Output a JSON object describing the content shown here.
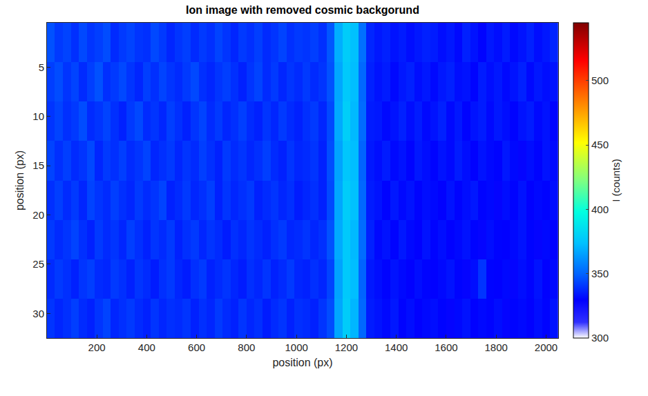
{
  "chart_data": {
    "type": "heatmap",
    "title": "Ion image with removed cosmic backgorund",
    "xlabel": "position (px)",
    "ylabel": "position (px)",
    "colorbar_title": "I (counts)",
    "x": [
      16,
      48,
      80,
      112,
      144,
      176,
      208,
      240,
      272,
      304,
      336,
      368,
      400,
      432,
      464,
      496,
      528,
      560,
      592,
      624,
      656,
      688,
      720,
      752,
      784,
      816,
      848,
      880,
      912,
      944,
      976,
      1008,
      1040,
      1072,
      1104,
      1136,
      1168,
      1200,
      1232,
      1264,
      1296,
      1328,
      1360,
      1392,
      1424,
      1456,
      1488,
      1520,
      1552,
      1584,
      1616,
      1648,
      1680,
      1712,
      1744,
      1776,
      1808,
      1840,
      1872,
      1904,
      1936,
      1968,
      2000,
      2032
    ],
    "y": [
      2.5,
      6.5,
      10.5,
      14.5,
      18.5,
      22.5,
      26.5,
      30.5
    ],
    "z": [
      [
        346,
        341,
        343,
        339,
        344,
        340,
        342,
        345,
        338,
        341,
        343,
        340,
        339,
        344,
        341,
        337,
        340,
        342,
        338,
        341,
        339,
        343,
        340,
        337,
        341,
        339,
        342,
        338,
        340,
        343,
        339,
        341,
        340,
        342,
        339,
        347,
        369,
        378,
        374,
        353,
        337,
        334,
        336,
        333,
        335,
        332,
        334,
        336,
        335,
        332,
        334,
        331,
        336,
        333,
        330,
        334,
        332,
        335,
        331,
        333,
        336,
        332,
        334,
        337
      ],
      [
        342,
        345,
        340,
        343,
        338,
        342,
        346,
        339,
        341,
        344,
        340,
        337,
        342,
        339,
        343,
        340,
        338,
        341,
        344,
        339,
        337,
        340,
        342,
        339,
        336,
        340,
        343,
        338,
        341,
        337,
        340,
        338,
        341,
        338,
        340,
        346,
        367,
        377,
        373,
        351,
        336,
        333,
        335,
        331,
        334,
        336,
        332,
        334,
        331,
        334,
        336,
        332,
        333,
        330,
        335,
        332,
        334,
        331,
        333,
        336,
        331,
        334,
        332,
        333
      ],
      [
        340,
        343,
        339,
        341,
        345,
        338,
        340,
        343,
        339,
        336,
        341,
        344,
        338,
        340,
        337,
        342,
        339,
        336,
        340,
        343,
        338,
        341,
        337,
        339,
        342,
        338,
        336,
        340,
        337,
        341,
        338,
        336,
        339,
        341,
        337,
        344,
        368,
        379,
        372,
        352,
        335,
        334,
        331,
        333,
        336,
        332,
        335,
        331,
        333,
        336,
        331,
        334,
        330,
        333,
        335,
        331,
        334,
        332,
        330,
        333,
        335,
        331,
        333,
        330
      ],
      [
        343,
        339,
        342,
        338,
        340,
        344,
        337,
        341,
        339,
        342,
        338,
        340,
        343,
        337,
        339,
        341,
        337,
        340,
        338,
        342,
        339,
        336,
        341,
        338,
        340,
        337,
        339,
        342,
        338,
        336,
        340,
        337,
        338,
        340,
        336,
        345,
        366,
        376,
        373,
        350,
        334,
        332,
        335,
        331,
        333,
        330,
        334,
        332,
        330,
        333,
        331,
        335,
        332,
        329,
        333,
        331,
        330,
        334,
        331,
        328,
        332,
        330,
        333,
        331
      ],
      [
        339,
        342,
        338,
        341,
        337,
        343,
        340,
        338,
        342,
        339,
        337,
        341,
        338,
        340,
        343,
        336,
        338,
        341,
        337,
        339,
        342,
        336,
        340,
        337,
        339,
        341,
        336,
        338,
        340,
        337,
        339,
        335,
        337,
        339,
        336,
        344,
        367,
        378,
        374,
        351,
        335,
        333,
        330,
        334,
        331,
        333,
        330,
        332,
        331,
        329,
        333,
        330,
        332,
        334,
        330,
        331,
        328,
        332,
        330,
        333,
        329,
        331,
        330,
        332
      ],
      [
        341,
        338,
        340,
        343,
        339,
        336,
        341,
        338,
        340,
        337,
        342,
        339,
        336,
        340,
        338,
        341,
        336,
        339,
        341,
        337,
        340,
        338,
        335,
        339,
        337,
        340,
        338,
        336,
        339,
        341,
        337,
        338,
        340,
        337,
        339,
        346,
        368,
        377,
        372,
        352,
        336,
        331,
        333,
        330,
        334,
        331,
        329,
        333,
        330,
        332,
        329,
        331,
        333,
        330,
        328,
        332,
        330,
        329,
        331,
        333,
        330,
        328,
        331,
        329
      ],
      [
        338,
        341,
        339,
        336,
        340,
        342,
        338,
        337,
        341,
        339,
        336,
        340,
        338,
        335,
        339,
        341,
        337,
        335,
        339,
        341,
        336,
        338,
        340,
        337,
        335,
        339,
        337,
        340,
        336,
        338,
        341,
        337,
        336,
        339,
        337,
        343,
        366,
        377,
        373,
        350,
        334,
        332,
        330,
        333,
        331,
        329,
        332,
        330,
        329,
        331,
        333,
        330,
        328,
        332,
        340,
        330,
        329,
        331,
        328,
        332,
        330,
        333,
        329,
        331
      ],
      [
        340,
        337,
        339,
        342,
        338,
        336,
        340,
        343,
        337,
        339,
        341,
        338,
        336,
        340,
        337,
        339,
        338,
        340,
        336,
        339,
        337,
        341,
        338,
        336,
        340,
        337,
        339,
        335,
        338,
        340,
        336,
        339,
        338,
        336,
        340,
        345,
        367,
        378,
        371,
        351,
        335,
        333,
        331,
        334,
        330,
        332,
        329,
        331,
        332,
        330,
        328,
        331,
        333,
        329,
        331,
        330,
        332,
        328,
        330,
        331,
        329,
        332,
        330,
        333
      ]
    ],
    "xlim": [
      0.5,
      2048.5
    ],
    "ylim": [
      32.5,
      0.5
    ],
    "xticks": [
      200,
      400,
      600,
      800,
      1000,
      1200,
      1400,
      1600,
      1800,
      2000
    ],
    "yticks": [
      5,
      10,
      15,
      20,
      25,
      30
    ],
    "colorbar_range": [
      300,
      545
    ],
    "colorbar_ticks": [
      300,
      350,
      400,
      450,
      500
    ]
  }
}
